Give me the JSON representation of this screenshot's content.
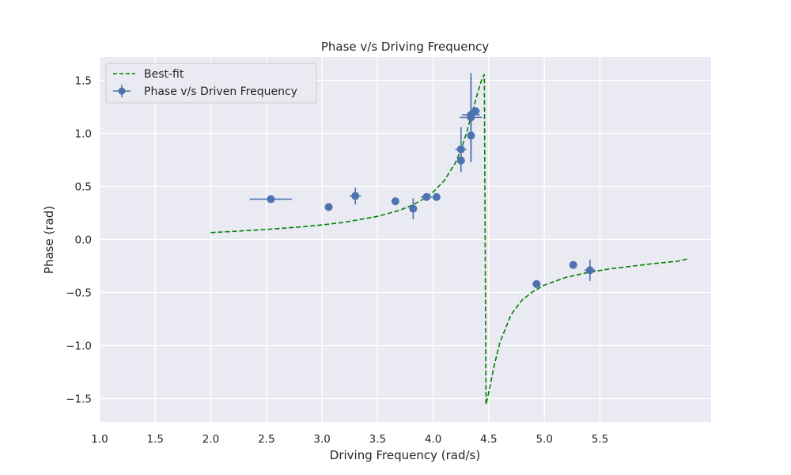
{
  "chart_data": {
    "type": "scatter",
    "title": "Phase v/s Driving Frequency",
    "xlabel": "Driving Frequency (rad/s)",
    "ylabel": "Phase (rad)",
    "xlim": [
      1.0,
      6.5
    ],
    "ylim": [
      -1.72,
      1.72
    ],
    "x_ticks": [
      1.0,
      1.5,
      2.0,
      2.5,
      3.0,
      3.5,
      4.0,
      4.5,
      5.0,
      5.5
    ],
    "y_ticks": [
      -1.5,
      -1.0,
      -0.5,
      0.0,
      0.5,
      1.0,
      1.5
    ],
    "x_tick_labels": [
      "1.0",
      "1.5",
      "2.0",
      "2.5",
      "3.0",
      "3.5",
      "4.0",
      "4.5",
      "5.0",
      "5.5"
    ],
    "y_tick_labels": [
      "−1.5",
      "−1.0",
      "−0.5",
      "0.0",
      "0.5",
      "1.0",
      "1.5"
    ],
    "grid": true,
    "background": "#eaeaf2",
    "legend_position": "top-left",
    "series": [
      {
        "name": "Best-fit",
        "kind": "line",
        "style": "dashed",
        "color": "#008000",
        "x": [
          2.0,
          2.2,
          2.5,
          2.8,
          3.0,
          3.2,
          3.5,
          3.7,
          3.8,
          3.9,
          4.0,
          4.1,
          4.2,
          4.25,
          4.3,
          4.35,
          4.4,
          4.43,
          4.46,
          4.475,
          4.5,
          4.55,
          4.6,
          4.7,
          4.8,
          4.9,
          5.0,
          5.2,
          5.4,
          5.6,
          5.8,
          6.0,
          6.2,
          6.3
        ],
        "y": [
          0.065,
          0.076,
          0.095,
          0.118,
          0.137,
          0.162,
          0.218,
          0.276,
          0.318,
          0.373,
          0.448,
          0.555,
          0.722,
          0.845,
          1.006,
          1.19,
          1.384,
          1.487,
          1.556,
          -1.556,
          -1.44,
          -1.185,
          -0.97,
          -0.71,
          -0.57,
          -0.49,
          -0.43,
          -0.355,
          -0.31,
          -0.275,
          -0.25,
          -0.225,
          -0.205,
          -0.18
        ]
      },
      {
        "name": "Phase v/s Driven Frequency",
        "kind": "errorbar",
        "color": "#4c72b0",
        "points": [
          {
            "x": 2.54,
            "y": 0.38,
            "xerr": 0.19,
            "yerr": 0.0
          },
          {
            "x": 3.06,
            "y": 0.305,
            "xerr": 0.0,
            "yerr": 0.0
          },
          {
            "x": 3.3,
            "y": 0.41,
            "xerr": 0.05,
            "yerr": 0.08
          },
          {
            "x": 3.66,
            "y": 0.36,
            "xerr": 0.0,
            "yerr": 0.0
          },
          {
            "x": 3.82,
            "y": 0.29,
            "xerr": 0.0,
            "yerr": 0.1
          },
          {
            "x": 3.94,
            "y": 0.4,
            "xerr": 0.05,
            "yerr": 0.0
          },
          {
            "x": 4.03,
            "y": 0.4,
            "xerr": 0.0,
            "yerr": 0.0
          },
          {
            "x": 4.25,
            "y": 0.745,
            "xerr": 0.0,
            "yerr": 0.11
          },
          {
            "x": 4.25,
            "y": 0.85,
            "xerr": 0.05,
            "yerr": 0.21
          },
          {
            "x": 4.34,
            "y": 0.98,
            "xerr": 0.0,
            "yerr": 0.25
          },
          {
            "x": 4.34,
            "y": 1.15,
            "xerr": 0.1,
            "yerr": 0.42
          },
          {
            "x": 4.34,
            "y": 1.175,
            "xerr": 0.08,
            "yerr": 0.35
          },
          {
            "x": 4.38,
            "y": 1.21,
            "xerr": 0.04,
            "yerr": 0.0
          },
          {
            "x": 4.93,
            "y": -0.42,
            "xerr": 0.0,
            "yerr": 0.0
          },
          {
            "x": 5.26,
            "y": -0.24,
            "xerr": 0.0,
            "yerr": 0.0
          },
          {
            "x": 5.41,
            "y": -0.29,
            "xerr": 0.05,
            "yerr": 0.1
          }
        ]
      }
    ]
  }
}
